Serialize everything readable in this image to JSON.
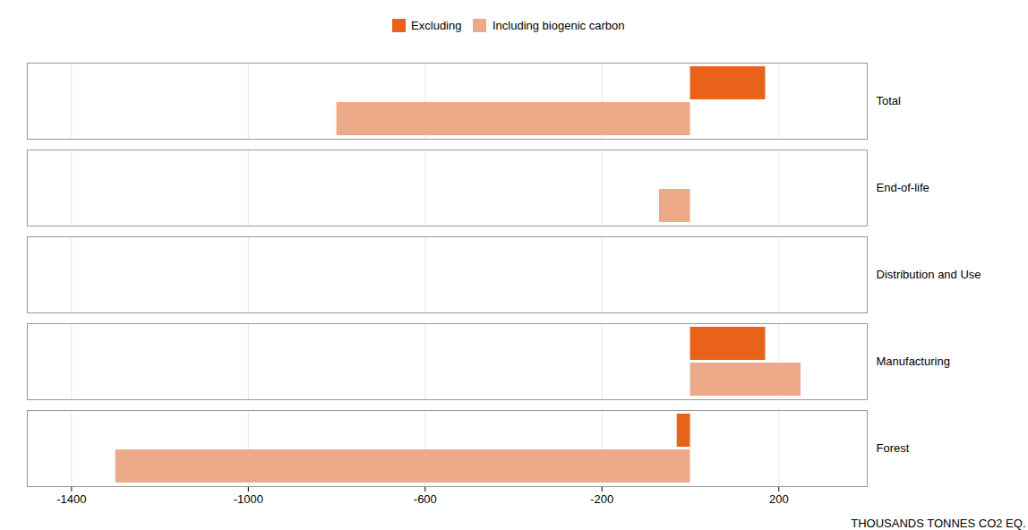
{
  "chart_data": {
    "type": "bar",
    "orientation": "horizontal",
    "categories": [
      "Total",
      "End-of-life",
      "Distribution and Use",
      "Manufacturing",
      "Forest"
    ],
    "series": [
      {
        "name": "Excluding",
        "color": "#E8621A",
        "values": [
          170,
          0,
          0,
          170,
          -30
        ]
      },
      {
        "name": "Including biogenic carbon",
        "color": "#EDAA88",
        "values": [
          -800,
          -70,
          0,
          250,
          -1300
        ]
      }
    ],
    "xlabel": "THOUSANDS TONNES CO2 EQ.",
    "xlim": [
      -1500,
      400
    ],
    "xticks": [
      -1400,
      -1000,
      -600,
      -200,
      200
    ],
    "grid": true,
    "legend": "top"
  }
}
